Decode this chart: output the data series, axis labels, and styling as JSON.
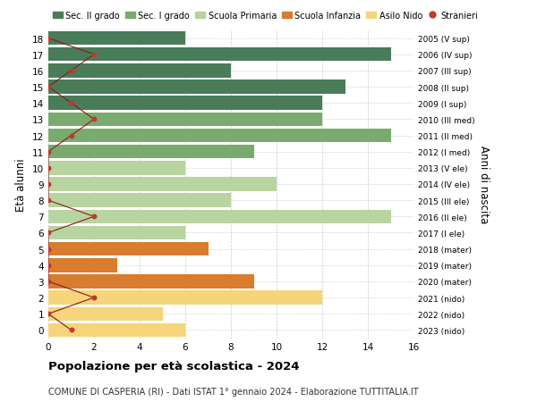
{
  "ages": [
    18,
    17,
    16,
    15,
    14,
    13,
    12,
    11,
    10,
    9,
    8,
    7,
    6,
    5,
    4,
    3,
    2,
    1,
    0
  ],
  "right_labels": [
    "2005 (V sup)",
    "2006 (IV sup)",
    "2007 (III sup)",
    "2008 (II sup)",
    "2009 (I sup)",
    "2010 (III med)",
    "2011 (II med)",
    "2012 (I med)",
    "2013 (V ele)",
    "2014 (IV ele)",
    "2015 (III ele)",
    "2016 (II ele)",
    "2017 (I ele)",
    "2018 (mater)",
    "2019 (mater)",
    "2020 (mater)",
    "2021 (nido)",
    "2022 (nido)",
    "2023 (nido)"
  ],
  "bar_values": [
    6,
    15,
    8,
    13,
    12,
    12,
    15,
    9,
    6,
    10,
    8,
    15,
    6,
    7,
    3,
    9,
    12,
    5,
    6
  ],
  "bar_colors": [
    "#4a7c59",
    "#4a7c59",
    "#4a7c59",
    "#4a7c59",
    "#4a7c59",
    "#7aab6e",
    "#7aab6e",
    "#7aab6e",
    "#b8d4a0",
    "#b8d4a0",
    "#b8d4a0",
    "#b8d4a0",
    "#b8d4a0",
    "#d97c2e",
    "#d97c2e",
    "#d97c2e",
    "#f5d47a",
    "#f5d47a",
    "#f5d47a"
  ],
  "stranieri_values": [
    0,
    2,
    1,
    0,
    1,
    2,
    1,
    0,
    0,
    0,
    0,
    2,
    0,
    0,
    0,
    0,
    2,
    0,
    1
  ],
  "legend_labels": [
    "Sec. II grado",
    "Sec. I grado",
    "Scuola Primaria",
    "Scuola Infanzia",
    "Asilo Nido",
    "Stranieri"
  ],
  "legend_colors": [
    "#4a7c59",
    "#7aab6e",
    "#b8d4a0",
    "#d97c2e",
    "#f5d47a",
    "#c0392b"
  ],
  "title": "Popolazione per età scolastica - 2024",
  "subtitle": "COMUNE DI CASPERIA (RI) - Dati ISTAT 1° gennaio 2024 - Elaborazione TUTTITALIA.IT",
  "ylabel_left": "Età alunni",
  "ylabel_right": "Anni di nascita",
  "xlim": [
    0,
    16
  ],
  "xticks": [
    0,
    2,
    4,
    6,
    8,
    10,
    12,
    14,
    16
  ],
  "bg_color": "#ffffff",
  "grid_color": "#cccccc",
  "bar_height": 0.85,
  "stranieri_line_color": "#8b1a1a",
  "stranieri_dot_color": "#c0392b"
}
